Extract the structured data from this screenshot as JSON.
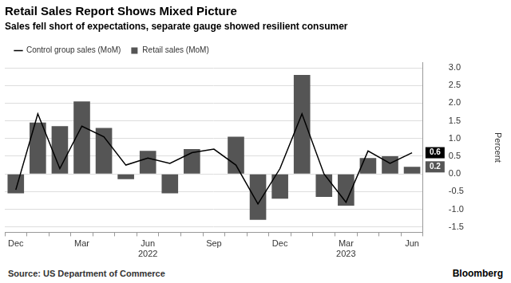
{
  "chart_data": {
    "type": "bar",
    "title": "Retail Sales Report Shows Mixed Picture",
    "subtitle": "Sales fell short of expectations, separate gauge showed resilient consumer",
    "y_label": "Percent",
    "source": "Source: US Department of Commerce",
    "credit": "Bloomberg",
    "categories": [
      "Dec",
      null,
      null,
      "Mar",
      null,
      null,
      [
        "Jun",
        "2022"
      ],
      null,
      null,
      "Sep",
      null,
      null,
      "Dec",
      null,
      null,
      [
        "Mar",
        "2023"
      ],
      null,
      null,
      "Jun"
    ],
    "series": [
      {
        "name": "Retail sales (MoM)",
        "type": "bar",
        "color": "#555555",
        "values": [
          -0.55,
          1.45,
          1.35,
          2.05,
          1.3,
          -0.15,
          0.65,
          -0.55,
          0.7,
          0.0,
          1.05,
          -1.3,
          -0.7,
          2.8,
          -0.65,
          -0.9,
          0.45,
          0.5,
          0.2
        ]
      },
      {
        "name": "Control group sales (MoM)",
        "type": "line",
        "color": "#000000",
        "values": [
          -0.45,
          1.7,
          0.15,
          1.35,
          1.05,
          0.25,
          0.45,
          0.3,
          0.6,
          0.7,
          0.25,
          -0.85,
          0.15,
          1.7,
          0.0,
          -0.8,
          0.65,
          0.3,
          0.6
        ]
      }
    ],
    "ylim": [
      -1.65,
      3.15
    ],
    "yticks": [
      {
        "value": -1.5,
        "label": "-1.5"
      },
      {
        "value": -1,
        "label": "-1.0"
      },
      -0.5,
      {
        "value": 0,
        "label": "0.0"
      },
      0.5,
      {
        "value": 1,
        "label": "1.0"
      },
      1.5,
      {
        "value": 2,
        "label": "2.0"
      },
      2.5,
      {
        "value": 3,
        "label": "3.0"
      }
    ],
    "grid": true,
    "legend": "top-left",
    "annotations": [
      {
        "text": "0.6",
        "y": 0.6,
        "series": "Control group sales (MoM)"
      },
      {
        "text": "0.2",
        "y": 0.2,
        "series": "Retail sales (MoM)"
      }
    ]
  }
}
